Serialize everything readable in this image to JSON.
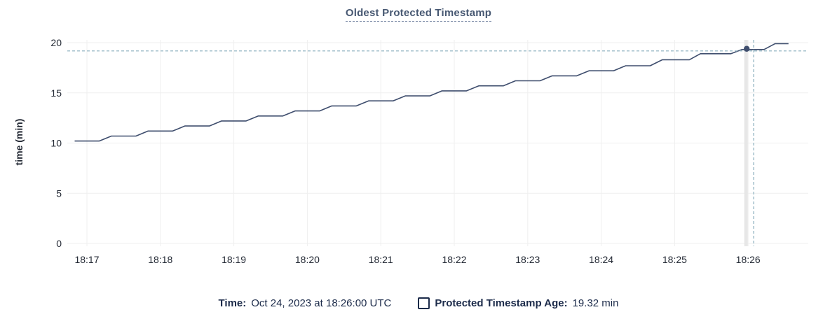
{
  "title": {
    "text": "Oldest Protected Timestamp"
  },
  "colors": {
    "title": "#475872",
    "line": "#3e4d6d",
    "crosshair": "#a6c2cd",
    "grid": "#efefef",
    "hover_tracker": "#e7e7e7",
    "axis_text": "#242a35",
    "legend_text": "#1c2b4a",
    "background": "#ffffff"
  },
  "chart_data": {
    "type": "line",
    "title": "Oldest Protected Timestamp",
    "xlabel": "",
    "ylabel": "time (min)",
    "x_tick_labels": [
      "18:17",
      "18:18",
      "18:19",
      "18:20",
      "18:21",
      "18:22",
      "18:23",
      "18:24",
      "18:25",
      "18:26"
    ],
    "y_ticks": [
      0,
      5,
      10,
      15,
      20
    ],
    "ylim": [
      0,
      20.4
    ],
    "x_range": [
      "18:16:50",
      "18:27:00"
    ],
    "grid": true,
    "legend_position": "bottom",
    "series": [
      {
        "name": "Protected Timestamp Age",
        "points": [
          [
            "18:16:50",
            10.2
          ],
          [
            "18:17:10",
            10.2
          ],
          [
            "18:17:20",
            10.7
          ],
          [
            "18:17:40",
            10.7
          ],
          [
            "18:17:50",
            11.2
          ],
          [
            "18:18:10",
            11.2
          ],
          [
            "18:18:20",
            11.7
          ],
          [
            "18:18:40",
            11.7
          ],
          [
            "18:18:50",
            12.2
          ],
          [
            "18:19:10",
            12.2
          ],
          [
            "18:19:20",
            12.7
          ],
          [
            "18:19:40",
            12.7
          ],
          [
            "18:19:50",
            13.2
          ],
          [
            "18:20:10",
            13.2
          ],
          [
            "18:20:20",
            13.7
          ],
          [
            "18:20:40",
            13.7
          ],
          [
            "18:20:50",
            14.2
          ],
          [
            "18:21:10",
            14.2
          ],
          [
            "18:21:20",
            14.7
          ],
          [
            "18:21:40",
            14.7
          ],
          [
            "18:21:50",
            15.2
          ],
          [
            "18:22:10",
            15.2
          ],
          [
            "18:22:20",
            15.7
          ],
          [
            "18:22:40",
            15.7
          ],
          [
            "18:22:50",
            16.2
          ],
          [
            "18:23:10",
            16.2
          ],
          [
            "18:23:20",
            16.7
          ],
          [
            "18:23:40",
            16.7
          ],
          [
            "18:23:50",
            17.2
          ],
          [
            "18:24:10",
            17.2
          ],
          [
            "18:24:20",
            17.7
          ],
          [
            "18:24:40",
            17.7
          ],
          [
            "18:24:50",
            18.3
          ],
          [
            "18:25:12",
            18.3
          ],
          [
            "18:25:21",
            18.9
          ],
          [
            "18:25:46",
            18.9
          ],
          [
            "18:25:55",
            19.32
          ],
          [
            "18:26:13",
            19.32
          ],
          [
            "18:26:22",
            19.9
          ],
          [
            "18:26:33",
            19.9
          ]
        ]
      }
    ],
    "crosshair": {
      "time": "18:26:00",
      "value": 19.32
    }
  },
  "footer_legend": {
    "time_label": "Time:",
    "time_value": "Oct 24, 2023 at 18:26:00 UTC",
    "series_label": "Protected Timestamp Age:",
    "series_value": "19.32 min"
  }
}
